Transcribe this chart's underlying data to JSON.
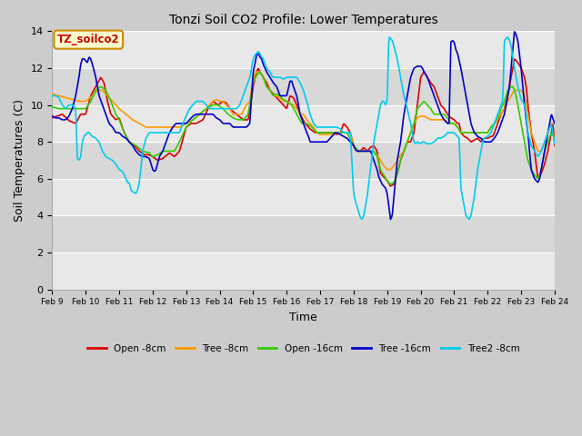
{
  "title": "Tonzi Soil CO2 Profile: Lower Temperatures",
  "xlabel": "Time",
  "ylabel": "Soil Temperatures (C)",
  "ylim": [
    0,
    14
  ],
  "yticks": [
    0,
    2,
    4,
    6,
    8,
    10,
    12,
    14
  ],
  "annotation_text": "TZ_soilco2",
  "annotation_color": "#cc0000",
  "annotation_bg": "#ffffcc",
  "annotation_border": "#cc8800",
  "fig_bg": "#dddddd",
  "plot_bg_light": "#e8e8e8",
  "plot_bg_dark": "#d0d0d0",
  "series": {
    "open_8cm": {
      "color": "#dd0000",
      "label": "Open -8cm",
      "lw": 1.2
    },
    "tree_8cm": {
      "color": "#ff9900",
      "label": "Tree -8cm",
      "lw": 1.2
    },
    "open_16cm": {
      "color": "#33cc00",
      "label": "Open -16cm",
      "lw": 1.2
    },
    "tree_16cm": {
      "color": "#0000cc",
      "label": "Tree -16cm",
      "lw": 1.2
    },
    "tree2_8cm": {
      "color": "#00ccee",
      "label": "Tree2 -8cm",
      "lw": 1.2
    }
  },
  "xtick_labels": [
    "Feb 9",
    "Feb 10",
    "Feb 11",
    "Feb 12",
    "Feb 13",
    "Feb 14",
    "Feb 15",
    "Feb 16",
    "Feb 17",
    "Feb 18",
    "Feb 19",
    "Feb 20",
    "Feb 21",
    "Feb 22",
    "Feb 23",
    "Feb 24"
  ],
  "n_points": 16
}
